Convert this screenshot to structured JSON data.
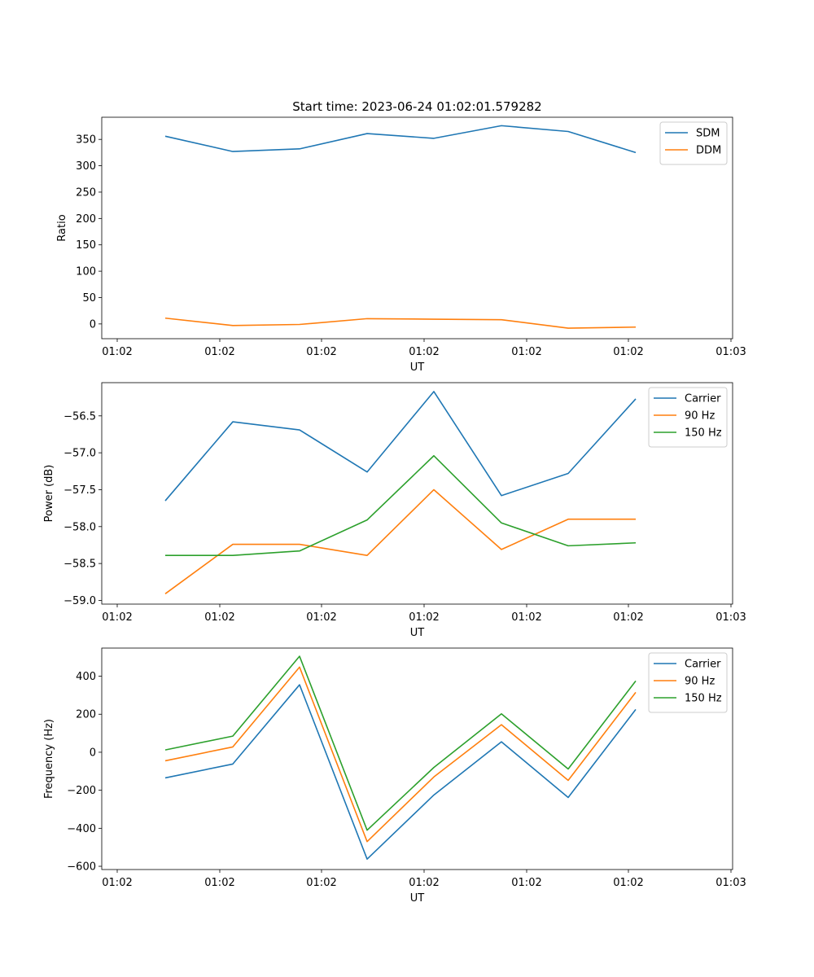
{
  "figure": {
    "title": "Start time: 2023-06-24 01:02:01.579282"
  },
  "chart_data": [
    {
      "type": "line",
      "ylabel": "Ratio",
      "xlabel": "UT",
      "xticks": [
        "01:02",
        "01:02",
        "01:02",
        "01:02",
        "01:02",
        "01:02",
        "01:02"
      ],
      "xticks_last": "01:03",
      "ylim": [
        -28,
        392
      ],
      "yticks": [
        0,
        50,
        100,
        150,
        200,
        250,
        300,
        350
      ],
      "legend_position": "top-right",
      "series": [
        {
          "name": "SDM",
          "color": "#1f77b4",
          "values": [
            356,
            327,
            332,
            361,
            352,
            376,
            365,
            325
          ]
        },
        {
          "name": "DDM",
          "color": "#ff7f0e",
          "values": [
            11,
            -3,
            -1,
            10,
            9,
            8,
            -8,
            -6
          ]
        }
      ]
    },
    {
      "type": "line",
      "ylabel": "Power (dB)",
      "xlabel": "UT",
      "xticks": [
        "01:02",
        "01:02",
        "01:02",
        "01:02",
        "01:02",
        "01:02",
        "01:02"
      ],
      "xticks_last": "01:03",
      "ylim": [
        -59.05,
        -56.05
      ],
      "yticks": [
        -59.0,
        -58.5,
        -58.0,
        -57.5,
        -57.0,
        -56.5
      ],
      "ytick_labels": [
        "−59.0",
        "−58.5",
        "−58.0",
        "−57.5",
        "−57.0",
        "−56.5"
      ],
      "legend_position": "top-right",
      "series": [
        {
          "name": "Carrier",
          "color": "#1f77b4",
          "values": [
            -57.65,
            -56.58,
            -56.69,
            -57.26,
            -56.17,
            -57.58,
            -57.28,
            -56.27
          ]
        },
        {
          "name": "90 Hz",
          "color": "#ff7f0e",
          "values": [
            -58.91,
            -58.24,
            -58.24,
            -58.39,
            -57.5,
            -58.31,
            -57.9,
            -57.9
          ]
        },
        {
          "name": "150 Hz",
          "color": "#2ca02c",
          "values": [
            -58.39,
            -58.39,
            -58.33,
            -57.91,
            -57.04,
            -57.95,
            -58.26,
            -58.22
          ]
        }
      ]
    },
    {
      "type": "line",
      "ylabel": "Frequency (Hz)",
      "xlabel": "UT",
      "xticks": [
        "01:02",
        "01:02",
        "01:02",
        "01:02",
        "01:02",
        "01:02",
        "01:02"
      ],
      "xticks_last": "01:03",
      "ylim": [
        -617,
        548
      ],
      "yticks": [
        -600,
        -400,
        -200,
        0,
        200,
        400
      ],
      "ytick_labels": [
        "−600",
        "−400",
        "−200",
        "0",
        "200",
        "400"
      ],
      "legend_position": "top-right",
      "series": [
        {
          "name": "Carrier",
          "color": "#1f77b4",
          "values": [
            -135,
            -62,
            355,
            -562,
            -225,
            55,
            -238,
            225
          ]
        },
        {
          "name": "90 Hz",
          "color": "#ff7f0e",
          "values": [
            -45,
            28,
            448,
            -470,
            -130,
            145,
            -148,
            315
          ]
        },
        {
          "name": "150 Hz",
          "color": "#2ca02c",
          "values": [
            12,
            85,
            505,
            -410,
            -80,
            202,
            -88,
            375
          ]
        }
      ]
    }
  ]
}
